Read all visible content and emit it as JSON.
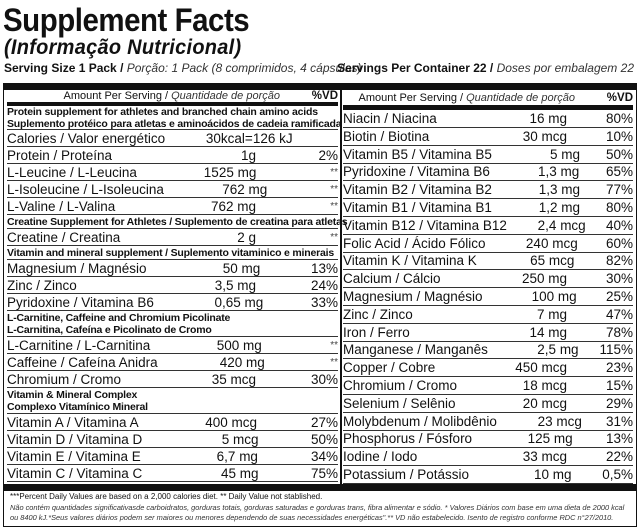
{
  "title": "Supplement Facts",
  "subtitle": "(Informação Nutricional)",
  "serving": {
    "size_label": "Serving Size 1 Pack /",
    "size_pt": "Porção: 1 Pack (8 comprimidos, 4 cápsulas)",
    "per_container_label": "Servings Per Container 22 /",
    "per_container_pt": "Doses por embalagem 22"
  },
  "header": {
    "amount": "Amount Per Serving /",
    "amount_pt": "Quantidade de porção",
    "vd": "%VD"
  },
  "left": {
    "sec_protein": [
      "Protein supplement for athletes and branched chain amino acids",
      "Suplemento protéico para atletas e aminoácidos de cadeia ramificada"
    ],
    "calories": {
      "name": "Calories / Valor energético",
      "amount": "30kcal=126 kJ"
    },
    "protein_rows": [
      {
        "name": "Protein / Proteína",
        "amount": "1g",
        "vd": "2%"
      },
      {
        "name": "L-Leucine / L-Leucina",
        "amount": "1525 mg",
        "vd": "**"
      },
      {
        "name": "L-Isoleucine / L-Isoleucina",
        "amount": "762 mg",
        "vd": "**"
      },
      {
        "name": "L-Valine / L-Valina",
        "amount": "762 mg",
        "vd": "**"
      }
    ],
    "sec_creatine": "Creatine Supplement for Athletes / Suplemento de creatina para atletas",
    "creatine_rows": [
      {
        "name": "Creatine / Creatina",
        "amount": "2 g",
        "vd": "**"
      }
    ],
    "sec_vitamin": "Vitamin and mineral supplement / Suplemento vitaminico e minerais",
    "vitamin_rows": [
      {
        "name": "Magnesium / Magnésio",
        "amount": "50 mg",
        "vd": "13%"
      },
      {
        "name": "Zinc / Zinco",
        "amount": "3,5 mg",
        "vd": "24%"
      },
      {
        "name": "Pyridoxine / Vitamina B6",
        "amount": "0,65 mg",
        "vd": "33%"
      }
    ],
    "sec_carnitine": [
      "L-Carnitine, Caffeine and Chromium Picolinate",
      "L-Carnitina, Cafeína e Picolinato de Cromo"
    ],
    "carnitine_rows": [
      {
        "name": "L-Carnitine / L-Carnitina",
        "amount": "500 mg",
        "vd": "**"
      },
      {
        "name": "Caffeine / Cafeína Anidra",
        "amount": "420 mg",
        "vd": "**"
      },
      {
        "name": "Chromium / Cromo",
        "amount": "35 mcg",
        "vd": "30%"
      }
    ],
    "sec_complex": [
      "Vitamin & Mineral Complex",
      "Complexo Vitamínico Mineral"
    ],
    "complex_rows": [
      {
        "name": "Vitamin A / Vitamina A",
        "amount": "400 mcg",
        "vd": "27%"
      },
      {
        "name": "Vitamin D / Vitamina D",
        "amount": "5 mcg",
        "vd": "50%"
      },
      {
        "name": "Vitamin E / Vitamina E",
        "amount": "6,7 mg",
        "vd": "34%"
      },
      {
        "name": "Vitamin C / Vitamina C",
        "amount": "45 mg",
        "vd": "75%"
      }
    ]
  },
  "right": [
    {
      "name": "Niacin / Niacina",
      "amount": "16 mg",
      "vd": "80%"
    },
    {
      "name": "Biotin / Biotina",
      "amount": "30 mcg",
      "vd": "10%"
    },
    {
      "name": "Vitamin B5 / Vitamina B5",
      "amount": "5 mg",
      "vd": "50%"
    },
    {
      "name": "Pyridoxine / Vitamina B6",
      "amount": "1,3 mg",
      "vd": "65%"
    },
    {
      "name": "Vitamin B2 / Vitamina B2",
      "amount": "1,3 mg",
      "vd": "77%"
    },
    {
      "name": "Vitamin B1 / Vitamina B1",
      "amount": "1,2 mg",
      "vd": "80%"
    },
    {
      "name": "Vitamin B12 / Vitamina B12",
      "amount": "2,4 mcg",
      "vd": "40%"
    },
    {
      "name": "Folic Acid / Ácido Fólico",
      "amount": "240 mcg",
      "vd": "60%"
    },
    {
      "name": "Vitamin K / Vitamina K",
      "amount": "65 mcg",
      "vd": "82%"
    },
    {
      "name": "Calcium / Cálcio",
      "amount": "250 mg",
      "vd": "30%"
    },
    {
      "name": "Magnesium / Magnésio",
      "amount": "100 mg",
      "vd": "25%"
    },
    {
      "name": "Zinc / Zinco",
      "amount": "7 mg",
      "vd": "47%"
    },
    {
      "name": "Iron / Ferro",
      "amount": "14 mg",
      "vd": "78%"
    },
    {
      "name": "Manganese / Manganês",
      "amount": "2,5 mg",
      "vd": "115%"
    },
    {
      "name": "Copper / Cobre",
      "amount": "450 mcg",
      "vd": "23%"
    },
    {
      "name": "Chromium / Cromo",
      "amount": "18 mcg",
      "vd": "15%"
    },
    {
      "name": "Selenium / Selênio",
      "amount": "20 mcg",
      "vd": "29%"
    },
    {
      "name": "Molybdenum / Molibdênio",
      "amount": "23 mcg",
      "vd": "31%"
    },
    {
      "name": "Phosphorus / Fósforo",
      "amount": "125 mg",
      "vd": "13%"
    },
    {
      "name": "Iodine / Iodo",
      "amount": "33 mcg",
      "vd": "22%"
    },
    {
      "name": "Potassium / Potássio",
      "amount": "10 mg",
      "vd": "0,5%"
    }
  ],
  "footer": {
    "line1": "***Percent Daily Values are based on a 2,000 calories diet. ** Daily Value not stablished.",
    "line2": "Não contém quantidades significativasde carboidratos, gorduras totais, gorduras saturadas e gorduras trans, fibra alimentar e sódio. * Valores Diários com base em uma dieta de 2000 kcal ou 8400 kJ.*Seus valores diários podem ser maiores ou menores dependendo de suas necessidades energéticas\".** VD não estabelecido. Isento de registro conforme RDC n°27/2010."
  }
}
